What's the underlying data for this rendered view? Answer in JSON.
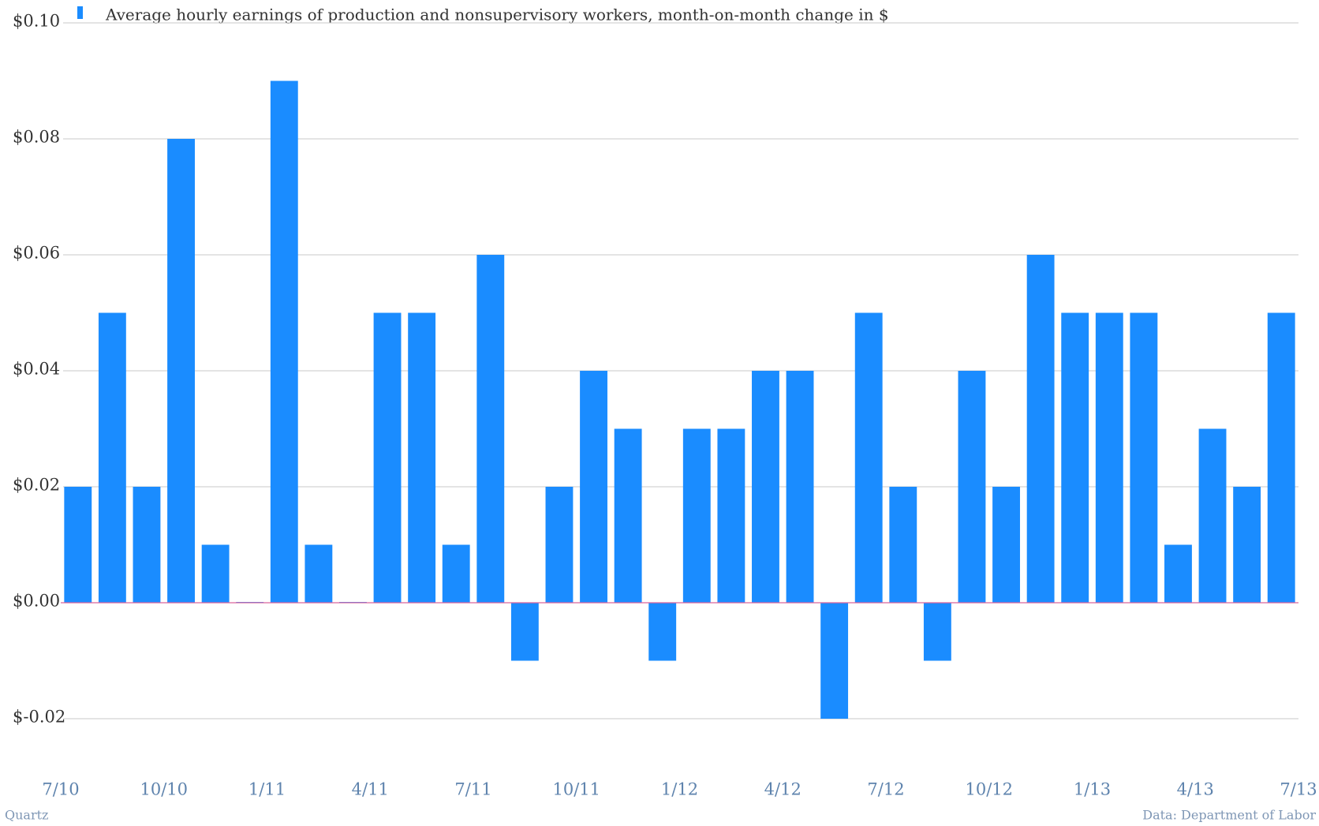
{
  "chart_data": {
    "type": "bar",
    "legend": "Average hourly earnings of production and nonsupervisory workers, month-on-month change in $",
    "source": "Data: Department of Labor",
    "credit": "Quartz",
    "color": "#1a8cff",
    "baseline_color": "#d9639c",
    "grid": true,
    "values": [
      0.02,
      0.05,
      0.02,
      0.08,
      0.01,
      0,
      0.09,
      0.01,
      0,
      0.05,
      0.05,
      0.01,
      0.06,
      -0.01,
      0.02,
      0.04,
      0.03,
      -0.01,
      0.03,
      0.03,
      0.04,
      0.04,
      -0.02,
      0.05,
      0.02,
      -0.01,
      0.04,
      0.02,
      0.06,
      0.05,
      0.05,
      0.05,
      0.01,
      0.03,
      0.02,
      0.05
    ],
    "xlim": [
      0,
      36
    ],
    "xticks": [
      {
        "value": 0,
        "label": "7/10"
      },
      {
        "value": 3,
        "label": "10/10"
      },
      {
        "value": 6,
        "label": "1/11"
      },
      {
        "value": 9,
        "label": "4/11"
      },
      {
        "value": 12,
        "label": "7/11"
      },
      {
        "value": 15,
        "label": "10/11"
      },
      {
        "value": 18,
        "label": "1/12"
      },
      {
        "value": 21,
        "label": "4/12"
      },
      {
        "value": 24,
        "label": "7/12"
      },
      {
        "value": 27,
        "label": "10/12"
      },
      {
        "value": 30,
        "label": "1/13"
      },
      {
        "value": 33,
        "label": "4/13"
      },
      {
        "value": 36,
        "label": "7/13"
      }
    ],
    "ylim": [
      -0.02,
      0.1
    ],
    "yticks": [
      {
        "value": -0.02,
        "label": "$-0.02"
      },
      {
        "value": 0,
        "label": "$0.00"
      },
      {
        "value": 0.02,
        "label": "$0.02"
      },
      {
        "value": 0.04,
        "label": "$0.04"
      },
      {
        "value": 0.06,
        "label": "$0.06"
      },
      {
        "value": 0.08,
        "label": "$0.08"
      },
      {
        "value": 0.1,
        "label": "$0.10"
      }
    ]
  }
}
